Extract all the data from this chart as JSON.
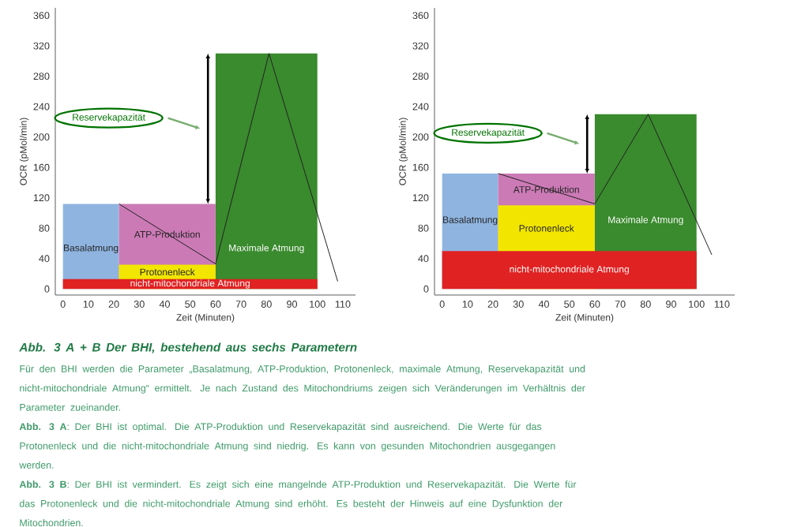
{
  "chart_data": [
    {
      "type": "area",
      "title": "Abb. 3 A + B Der BHI, bestehend aus sechs Parametern",
      "xlabel": "Zeit (Minuten)",
      "ylabel": "OCR (pMol/min)",
      "xlim": [
        -3,
        115
      ],
      "ylim": [
        -8,
        370
      ],
      "xticks": [
        0,
        10,
        20,
        30,
        40,
        50,
        60,
        70,
        80,
        90,
        100,
        110
      ],
      "yticks": [
        0,
        40,
        80,
        120,
        160,
        200,
        240,
        280,
        320,
        360
      ],
      "series": [
        {
          "name": "Maximale Atmung",
          "color": "#3a8a2e",
          "x": [
            60,
            100
          ],
          "values": [
            310,
            310
          ]
        },
        {
          "name": "Basalatmung",
          "color": "#8fb4e0",
          "x": [
            0,
            22
          ],
          "values": [
            112,
            112
          ]
        },
        {
          "name": "ATP-Produktion",
          "color": "#cc7ab6",
          "x": [
            22,
            60
          ],
          "values": [
            112,
            112
          ]
        },
        {
          "name": "Protonenleck",
          "color": "#f2e600",
          "x": [
            22,
            60
          ],
          "values": [
            32,
            32
          ]
        },
        {
          "name": "nicht-mitochondriale Atmung",
          "color": "#e02222",
          "x": [
            0,
            100
          ],
          "values": [
            13,
            13
          ]
        },
        {
          "type": "line",
          "color": "#222222",
          "x": [
            22,
            60,
            81,
            108
          ],
          "values": [
            112,
            33,
            310,
            10
          ]
        }
      ],
      "annotations": [
        "Reservekapazität",
        "Für den BHI werden die Parameter „Basalatmung, ATP-Produktion, Protonenleck, maximale Atmung, Reservekapazität und nicht-mitochondriale Atmung“ ermittelt. Je nach Zustand des Mitochondriums zeigen sich Veränderungen im Verhältnis der Parameter zueinander.",
        "**Abb. 3 A**: Der BHI ist optimal. Die ATP-Produktion und Reservekapazität sind ausreichend. Die Werte für das Protonenleck und die nicht-mitochondriale Atmung sind niedrig. Es kann von gesunden Mitochondrien ausgegangen werden.",
        "**Abb. 3 B**: Der BHI ist vermindert. Es zeigt sich eine mangelnde ATP-Produktion und Reservekapazität. Die Werte für das Protonenleck und die nicht-mitochondriale Atmung sind erhöht. Es besteht der Hinweis auf eine Dysfunktion der Mitochondrien."
      ]
    },
    {
      "type": "area",
      "xlabel": "Zeit (Minuten)",
      "ylabel": "OCR (pMol/min)",
      "xlim": [
        -3,
        115
      ],
      "ylim": [
        -8,
        370
      ],
      "xticks": [
        0,
        10,
        20,
        30,
        40,
        50,
        60,
        70,
        80,
        90,
        100,
        110
      ],
      "yticks": [
        0,
        40,
        80,
        120,
        160,
        200,
        240,
        280,
        320,
        360
      ],
      "series": [
        {
          "name": "Maximale Atmung",
          "color": "#3a8a2e",
          "x": [
            60,
            100
          ],
          "values": [
            230,
            230
          ]
        },
        {
          "name": "Basalatmung",
          "color": "#8fb4e0",
          "x": [
            0,
            22
          ],
          "values": [
            152,
            152
          ]
        },
        {
          "name": "ATP-Produktion",
          "color": "#cc7ab6",
          "x": [
            22,
            60
          ],
          "values": [
            152,
            152
          ]
        },
        {
          "name": "Protonenleck",
          "color": "#f2e600",
          "x": [
            22,
            60
          ],
          "values": [
            110,
            110
          ]
        },
        {
          "name": "nicht-mitochondriale Atmung",
          "color": "#e02222",
          "x": [
            0,
            100
          ],
          "values": [
            50,
            50
          ]
        },
        {
          "type": "line",
          "color": "#222222",
          "x": [
            22,
            60,
            81,
            106
          ],
          "values": [
            152,
            112,
            230,
            45
          ]
        }
      ],
      "annotations": [
        "Reservekapazität"
      ]
    }
  ]
}
